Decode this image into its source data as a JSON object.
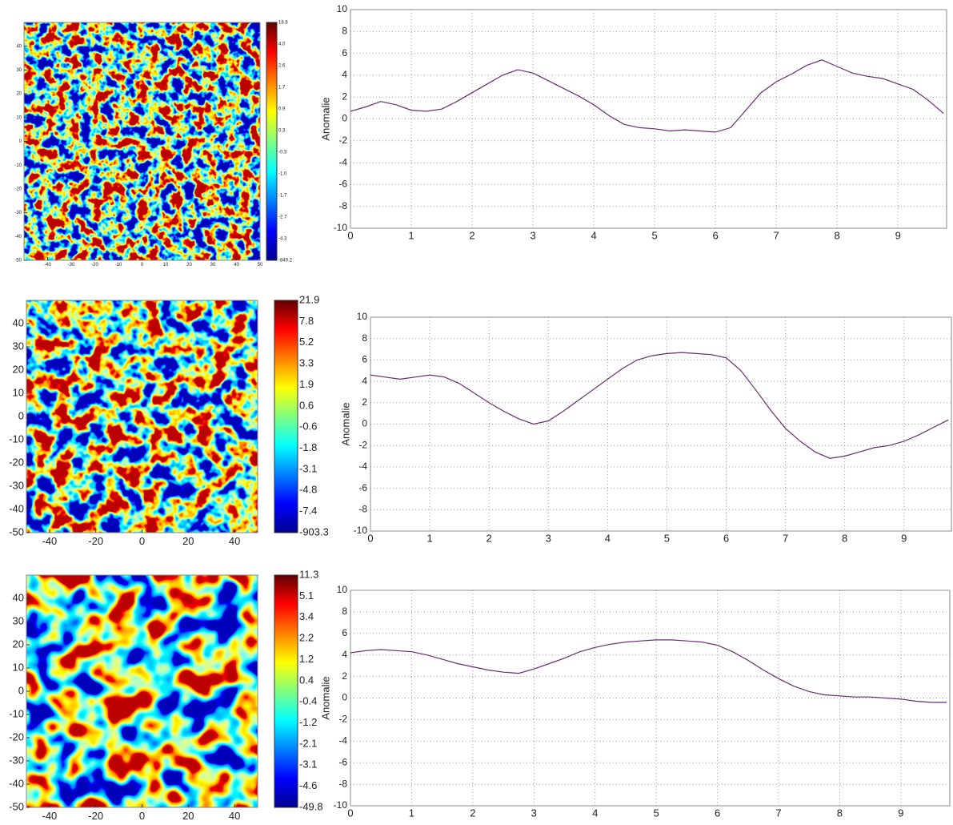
{
  "chart_data": [
    {
      "type": "heatmap",
      "xlim": [
        -50,
        50
      ],
      "ylim": [
        -50,
        50
      ],
      "xticks": [
        -40,
        -30,
        -20,
        -10,
        0,
        10,
        20,
        30,
        40,
        50
      ],
      "yticks": [
        40,
        30,
        20,
        10,
        0,
        -10,
        -20,
        -30,
        -40,
        -50
      ],
      "colorbar_labels": [
        "18.8",
        "4.0",
        "2.6",
        "1.7",
        "0.9",
        "0.3",
        "-0.3",
        "-1.0",
        "-1.7",
        "-2.7",
        "-4.3",
        "-849.2"
      ]
    },
    {
      "type": "line",
      "ylabel": "Anomalie",
      "x": [
        0,
        0.25,
        0.5,
        0.75,
        1,
        1.25,
        1.5,
        1.75,
        2,
        2.25,
        2.5,
        2.75,
        3,
        3.25,
        3.5,
        3.75,
        4,
        4.25,
        4.5,
        4.75,
        5,
        5.25,
        5.5,
        5.75,
        6,
        6.25,
        6.5,
        6.75,
        7,
        7.25,
        7.5,
        7.75,
        8,
        8.25,
        8.5,
        8.75,
        9,
        9.25,
        9.5,
        9.75
      ],
      "series": [
        {
          "color": "#6a2c70",
          "values": [
            0.7,
            1.1,
            1.6,
            1.3,
            0.8,
            0.7,
            0.9,
            1.6,
            2.4,
            3.2,
            4.0,
            4.5,
            4.2,
            3.5,
            2.8,
            2.1,
            1.3,
            0.3,
            -0.5,
            -0.8,
            -0.9,
            -1.1,
            -1.0,
            -1.1,
            -1.2,
            -0.8,
            0.8,
            2.4,
            3.4,
            4.1,
            4.9,
            5.4,
            4.8,
            4.2,
            3.9,
            3.7,
            3.2,
            2.7,
            1.7,
            0.5
          ]
        }
      ],
      "xlim": [
        0,
        9.8
      ],
      "ylim": [
        -10,
        10
      ],
      "xticks": [
        0,
        1,
        2,
        3,
        4,
        5,
        6,
        7,
        8,
        9
      ],
      "yticks": [
        -10,
        -8,
        -6,
        -4,
        -2,
        0,
        2,
        4,
        6,
        8,
        10
      ],
      "grid": true
    },
    {
      "type": "heatmap",
      "xlim": [
        -50,
        50
      ],
      "ylim": [
        -50,
        50
      ],
      "xticks": [
        -40,
        -20,
        0,
        20,
        40
      ],
      "yticks": [
        40,
        30,
        20,
        10,
        0,
        -10,
        -20,
        -30,
        -40,
        -50
      ],
      "colorbar_labels": [
        "21.9",
        "7.8",
        "5.2",
        "3.3",
        "1.9",
        "0.6",
        "-0.6",
        "-1.8",
        "-3.1",
        "-4.8",
        "-7.4",
        "-903.3"
      ]
    },
    {
      "type": "line",
      "ylabel": "Anomalie",
      "x": [
        0,
        0.25,
        0.5,
        0.75,
        1,
        1.25,
        1.5,
        1.75,
        2,
        2.25,
        2.5,
        2.75,
        3,
        3.25,
        3.5,
        3.75,
        4,
        4.25,
        4.5,
        4.75,
        5,
        5.25,
        5.5,
        5.75,
        6,
        6.25,
        6.5,
        6.75,
        7,
        7.25,
        7.5,
        7.75,
        8,
        8.25,
        8.5,
        8.75,
        9,
        9.25,
        9.5,
        9.75
      ],
      "series": [
        {
          "color": "#6a2c70",
          "values": [
            4.6,
            4.4,
            4.2,
            4.4,
            4.6,
            4.4,
            3.8,
            2.9,
            2.0,
            1.2,
            0.5,
            0.0,
            0.3,
            1.2,
            2.2,
            3.2,
            4.2,
            5.2,
            6.0,
            6.4,
            6.6,
            6.7,
            6.6,
            6.5,
            6.2,
            5.0,
            3.2,
            1.3,
            -0.4,
            -1.6,
            -2.6,
            -3.2,
            -3.0,
            -2.6,
            -2.2,
            -2.0,
            -1.6,
            -1.0,
            -0.3,
            0.4
          ]
        }
      ],
      "xlim": [
        0,
        9.8
      ],
      "ylim": [
        -10,
        10
      ],
      "xticks": [
        0,
        1,
        2,
        3,
        4,
        5,
        6,
        7,
        8,
        9
      ],
      "yticks": [
        -10,
        -8,
        -6,
        -4,
        -2,
        0,
        2,
        4,
        6,
        8,
        10
      ],
      "grid": true
    },
    {
      "type": "heatmap",
      "xlim": [
        -50,
        50
      ],
      "ylim": [
        -50,
        50
      ],
      "xticks": [
        -40,
        -20,
        0,
        20,
        40
      ],
      "yticks": [
        40,
        30,
        20,
        10,
        0,
        -10,
        -20,
        -30,
        -40,
        -50
      ],
      "colorbar_labels": [
        "11.3",
        "5.1",
        "3.4",
        "2.2",
        "1.2",
        "0.4",
        "-0.4",
        "-1.2",
        "-2.1",
        "-3.1",
        "-4.6",
        "-49.8"
      ]
    },
    {
      "type": "line",
      "ylabel": "Anomalie",
      "x": [
        0,
        0.25,
        0.5,
        0.75,
        1,
        1.25,
        1.5,
        1.75,
        2,
        2.25,
        2.5,
        2.75,
        3,
        3.25,
        3.5,
        3.75,
        4,
        4.25,
        4.5,
        4.75,
        5,
        5.25,
        5.5,
        5.75,
        6,
        6.25,
        6.5,
        6.75,
        7,
        7.25,
        7.5,
        7.75,
        8,
        8.25,
        8.5,
        8.75,
        9,
        9.25,
        9.5,
        9.75
      ],
      "series": [
        {
          "color": "#6a2c70",
          "values": [
            4.2,
            4.4,
            4.5,
            4.4,
            4.3,
            4.0,
            3.6,
            3.2,
            2.9,
            2.6,
            2.4,
            2.3,
            2.7,
            3.2,
            3.7,
            4.3,
            4.7,
            5.0,
            5.2,
            5.3,
            5.4,
            5.4,
            5.3,
            5.2,
            4.9,
            4.3,
            3.5,
            2.6,
            1.8,
            1.1,
            0.6,
            0.3,
            0.2,
            0.1,
            0.1,
            0.0,
            -0.1,
            -0.3,
            -0.4,
            -0.4
          ]
        }
      ],
      "xlim": [
        0,
        9.8
      ],
      "ylim": [
        -10,
        10
      ],
      "xticks": [
        0,
        1,
        2,
        3,
        4,
        5,
        6,
        7,
        8,
        9
      ],
      "yticks": [
        -10,
        -8,
        -6,
        -4,
        -2,
        0,
        2,
        4,
        6,
        8,
        10
      ],
      "grid": true
    }
  ]
}
